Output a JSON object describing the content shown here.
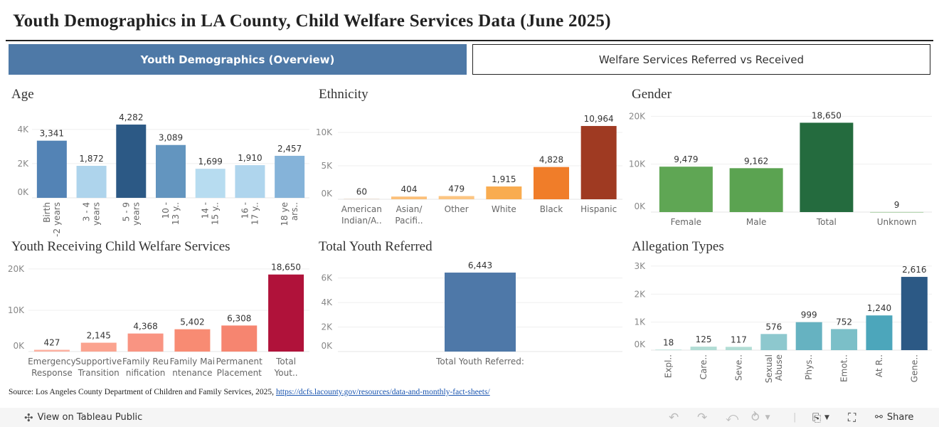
{
  "title": "Youth Demographics in LA County, Child Welfare Services Data (June 2025)",
  "tabs": [
    {
      "label": "Youth Demographics (Overview)",
      "active": true
    },
    {
      "label": "Welfare Services Referred vs Received",
      "active": false
    }
  ],
  "chart_data": [
    {
      "id": "age",
      "type": "bar",
      "title": "Age",
      "categories": [
        [
          "Birth",
          "-2 years"
        ],
        [
          "3 - 4",
          "years"
        ],
        [
          "5 - 9",
          "years"
        ],
        [
          "10 -",
          "13 y.."
        ],
        [
          "14 -",
          "15 y.."
        ],
        [
          "16 -",
          "17 y.."
        ],
        [
          "18 ye",
          "ars.."
        ]
      ],
      "values": [
        3341,
        1872,
        4282,
        3089,
        1699,
        1910,
        2457
      ],
      "value_labels": [
        "3,341",
        "1,872",
        "4,282",
        "3,089",
        "1,699",
        "1,910",
        "2,457"
      ],
      "colors": [
        "#5383b5",
        "#aed4ec",
        "#2c5985",
        "#6395bf",
        "#b7dcf0",
        "#afd5ed",
        "#85b3d9"
      ],
      "yticks": [
        0,
        2000,
        4000
      ],
      "ytick_labels": [
        "0K",
        "2K",
        "4K"
      ],
      "ylim": [
        0,
        4700
      ],
      "grid": true
    },
    {
      "id": "ethnicity",
      "type": "bar",
      "title": "Ethnicity",
      "categories": [
        [
          "American",
          "Indian/A.."
        ],
        [
          "Asian/",
          "Pacifi.."
        ],
        [
          "Other"
        ],
        [
          "White"
        ],
        [
          "Black"
        ],
        [
          "Hispanic"
        ]
      ],
      "values": [
        60,
        404,
        479,
        1915,
        4828,
        10964
      ],
      "value_labels": [
        "60",
        "404",
        "479",
        "1,915",
        "4,828",
        "10,964"
      ],
      "colors": [
        "#d9c9b4",
        "#fcc07a",
        "#fcc582",
        "#f9ac50",
        "#f07d29",
        "#9f3a22"
      ],
      "yticks": [
        0,
        5000,
        10000
      ],
      "ytick_labels": [
        "0K",
        "5K",
        "10K"
      ],
      "ylim": [
        0,
        11500
      ],
      "grid": true
    },
    {
      "id": "gender",
      "type": "bar",
      "title": "Gender",
      "categories": [
        [
          "Female"
        ],
        [
          "Male"
        ],
        [
          "Total"
        ],
        [
          "Unknown"
        ]
      ],
      "values": [
        9479,
        9162,
        18650,
        9
      ],
      "value_labels": [
        "9,479",
        "9,162",
        "18,650",
        "9"
      ],
      "colors": [
        "#5fa654",
        "#5ba351",
        "#246b3e",
        "#5fa654"
      ],
      "yticks": [
        0,
        10000,
        20000
      ],
      "ytick_labels": [
        "0K",
        "10K",
        "20K"
      ],
      "ylim": [
        0,
        20500
      ],
      "grid": true
    },
    {
      "id": "services",
      "type": "bar",
      "title": "Youth Receiving Child Welfare Services",
      "categories": [
        [
          "Emergency",
          "Response"
        ],
        [
          "Supportive",
          "Transition"
        ],
        [
          "Family Reu",
          "nification"
        ],
        [
          "Family Mai",
          "ntenance"
        ],
        [
          "Permanent",
          "Placement"
        ],
        [
          "Total",
          "Yout.."
        ]
      ],
      "values": [
        427,
        2145,
        4368,
        5402,
        6308,
        18650
      ],
      "value_labels": [
        "427",
        "2,145",
        "4,368",
        "5,402",
        "6,308",
        "18,650"
      ],
      "colors": [
        "#fcb0a0",
        "#fba38f",
        "#f99482",
        "#f88b73",
        "#f68570",
        "#b0123a"
      ],
      "yticks": [
        0,
        10000,
        20000
      ],
      "ytick_labels": [
        "0K",
        "10K",
        "20K"
      ],
      "ylim": [
        0,
        20500
      ],
      "grid": true
    },
    {
      "id": "referred",
      "type": "bar",
      "title": "Total Youth Referred",
      "categories": [
        [
          "Total Youth Referred:"
        ]
      ],
      "values": [
        6443
      ],
      "value_labels": [
        "6,443"
      ],
      "colors": [
        "#4e78a8"
      ],
      "yticks": [
        0,
        2000,
        4000,
        6000
      ],
      "ytick_labels": [
        "0K",
        "2K",
        "4K",
        "6K"
      ],
      "ylim": [
        0,
        7200
      ],
      "grid": true
    },
    {
      "id": "allegation",
      "type": "bar",
      "title": "Allegation Types",
      "categories": [
        [
          "Expl.."
        ],
        [
          "Care.."
        ],
        [
          "Seve.."
        ],
        [
          "Sexual",
          "Abuse"
        ],
        [
          "Phys.."
        ],
        [
          "Emot.."
        ],
        [
          "At R.."
        ],
        [
          "Gene.."
        ]
      ],
      "values": [
        18,
        125,
        117,
        576,
        999,
        752,
        1240,
        2616
      ],
      "value_labels": [
        "18",
        "125",
        "117",
        "576",
        "999",
        "752",
        "1,240",
        "2,616"
      ],
      "colors": [
        "#b2ddd5",
        "#b2ddd5",
        "#b2ddd5",
        "#8dc8ce",
        "#66b2c1",
        "#7bbfc8",
        "#4ca6bb",
        "#2c5985"
      ],
      "yticks": [
        0,
        1000,
        2000,
        3000
      ],
      "ytick_labels": [
        "0K",
        "1K",
        "2K",
        "3K"
      ],
      "ylim": [
        0,
        3100
      ],
      "grid": true
    }
  ],
  "source": {
    "text": "Source: Los Angeles County Department of Children and Family Services, 2025,",
    "link": "https://dcfs.lacounty.gov/resources/data-and-monthly-fact-sheets/"
  },
  "footer": {
    "view_label": "View on Tableau Public",
    "share_label": "Share",
    "icons": [
      "tableau-logo-icon",
      "undo-icon",
      "redo-icon",
      "revert-icon",
      "refresh-icon",
      "download-icon",
      "fullscreen-icon",
      "share-icon"
    ]
  }
}
